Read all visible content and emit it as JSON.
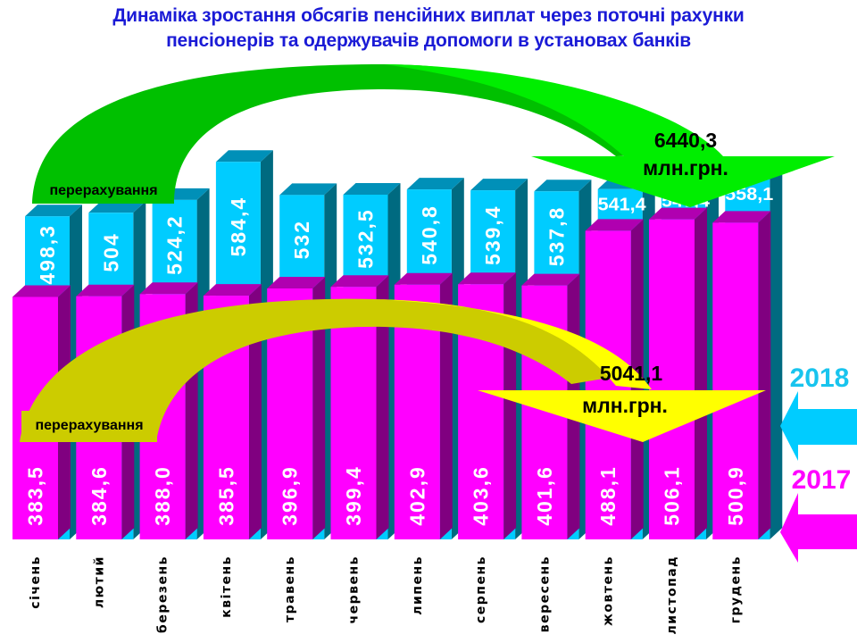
{
  "title": {
    "line1": "Динаміка зростання обсягів пенсійних виплат через поточні рахунки",
    "line2": "пенсіонерів та одержувачів допомоги в установах банків"
  },
  "arrows": {
    "upper": {
      "label": "перерахування",
      "total": "6440,3",
      "unit": "млн.грн.",
      "color": "#00ee00",
      "dark_color": "#00c000"
    },
    "lower": {
      "label": "перерахування",
      "total": "5041,1",
      "unit": "млн.грн.",
      "color": "#ffff00",
      "dark_color": "#cccc00"
    }
  },
  "legend": {
    "series_2018": {
      "label": "2018",
      "color": "#00ccff"
    },
    "series_2017": {
      "label": "2017",
      "color": "#ff00ff"
    }
  },
  "chart_data": {
    "type": "bar",
    "title": "Динаміка зростання обсягів пенсійних виплат через поточні рахунки пенсіонерів та одержувачів допомоги в установах банків",
    "xlabel": "",
    "ylabel": "млн.грн.",
    "categories": [
      "січень",
      "лютий",
      "березень",
      "квітень",
      "травень",
      "червень",
      "липень",
      "серпень",
      "вересень",
      "жовтень",
      "листопад",
      "грудень"
    ],
    "series": [
      {
        "name": "2017",
        "color": "#ff00ff",
        "values": [
          383.5,
          384.6,
          388.0,
          385.5,
          396.9,
          399.4,
          402.9,
          403.6,
          401.6,
          488.1,
          506.1,
          500.9
        ],
        "labels": [
          "383,5",
          "384,6",
          "388,0",
          "385,5",
          "396,9",
          "399,4",
          "402,9",
          "403,6",
          "401,6",
          "488,1",
          "506,1",
          "500,9"
        ]
      },
      {
        "name": "2018",
        "color": "#00ccff",
        "values": [
          498.3,
          504,
          524.2,
          584.4,
          532,
          532.5,
          540.8,
          539.4,
          537.8,
          541.4,
          547.4,
          558.1
        ],
        "labels": [
          "498,3",
          "504",
          "524,2",
          "584,4",
          "532",
          "532,5",
          "540,8",
          "539,4",
          "537,8",
          "541,4",
          "547,4",
          "558,1"
        ]
      }
    ],
    "totals": {
      "2017": "5041,1 млн.грн.",
      "2018": "6440,3 млн.грн."
    },
    "legend_position": "right",
    "grid": false,
    "style": "3d-overlapping-columns"
  }
}
